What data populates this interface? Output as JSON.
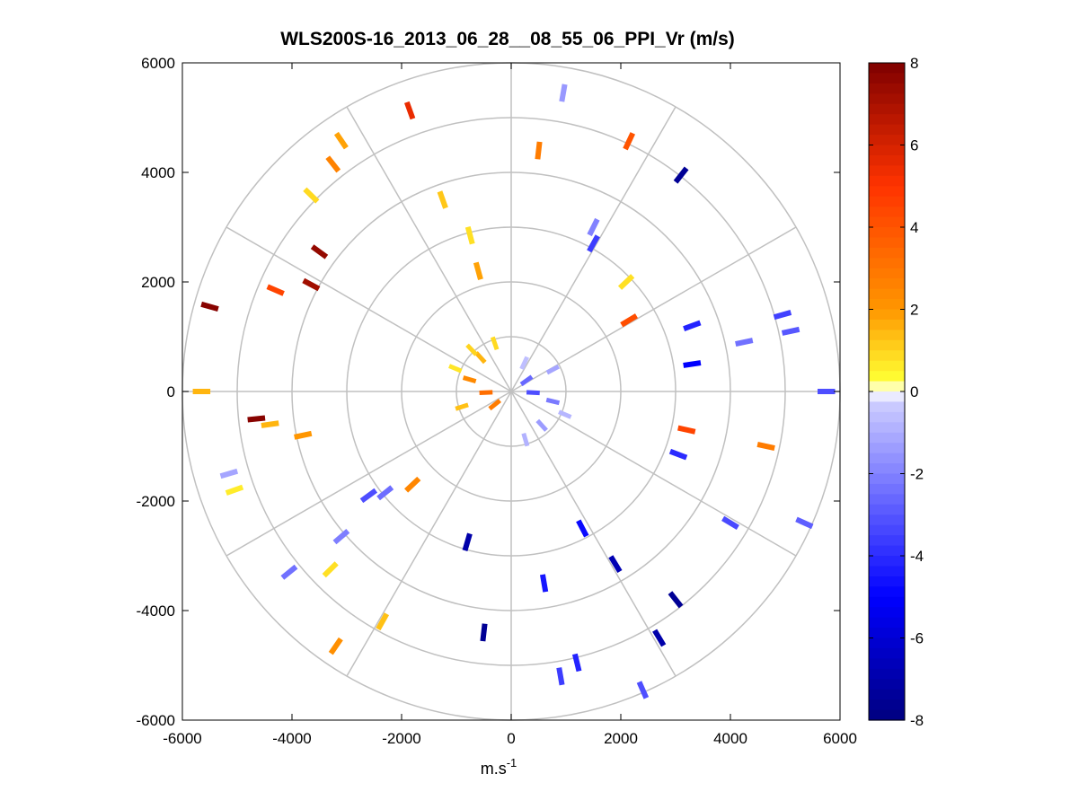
{
  "chart_data": {
    "type": "heatmap",
    "subtype": "polar-ppi",
    "title": "WLS200S-16_2013_06_28__08_55_06_PPI_Vr (m/s)",
    "xlabel": "m.s",
    "xlabel_superscript": "-1",
    "ylabel": "",
    "xlim": [
      -6000,
      6000
    ],
    "ylim": [
      -6000,
      6000
    ],
    "xticks": [
      -6000,
      -4000,
      -2000,
      0,
      2000,
      4000,
      6000
    ],
    "yticks": [
      -6000,
      -4000,
      -2000,
      0,
      2000,
      4000,
      6000
    ],
    "xtick_labels": [
      "-6000",
      "-4000",
      "-2000",
      "0",
      "2000",
      "4000",
      "6000"
    ],
    "ytick_labels": [
      "-6000",
      "-4000",
      "-2000",
      "0",
      "2000",
      "4000",
      "6000"
    ],
    "range_rings": [
      1000,
      2000,
      3000,
      4000,
      5000,
      6000
    ],
    "spoke_angles_deg": [
      0,
      30,
      60,
      90,
      120,
      150,
      180,
      210,
      240,
      270,
      300,
      330
    ],
    "colorbar": {
      "min": -8,
      "max": 8,
      "tick_values": [
        8,
        6,
        4,
        2,
        0,
        -2,
        -4,
        -6,
        -8
      ],
      "tick_labels": [
        "8",
        "6",
        "4",
        "2",
        "0",
        "-2",
        "-4",
        "-6",
        "-8"
      ],
      "colors": {
        "max": "#7f0000",
        "pos_mid": "#ff3300",
        "pos_low": "#ffff33",
        "zero": "#ffffff",
        "neg_low": "#ccccff",
        "neg_mid": "#0000ff",
        "min": "#000080"
      }
    },
    "points": [
      {
        "x": -460,
        "y": -20,
        "v": 3.2
      },
      {
        "x": -760,
        "y": 220,
        "v": 2.4
      },
      {
        "x": -560,
        "y": 620,
        "v": 1.5
      },
      {
        "x": -300,
        "y": 880,
        "v": 0.9
      },
      {
        "x": -900,
        "y": -280,
        "v": 1.3
      },
      {
        "x": -720,
        "y": 760,
        "v": 1.0
      },
      {
        "x": -300,
        "y": -240,
        "v": 2.8
      },
      {
        "x": -1020,
        "y": 420,
        "v": 0.7
      },
      {
        "x": 400,
        "y": -20,
        "v": -3.2
      },
      {
        "x": 760,
        "y": -180,
        "v": -2.2
      },
      {
        "x": 560,
        "y": -620,
        "v": -1.4
      },
      {
        "x": 260,
        "y": -880,
        "v": -0.9
      },
      {
        "x": 760,
        "y": 400,
        "v": -1.2
      },
      {
        "x": 240,
        "y": 520,
        "v": -0.6
      },
      {
        "x": 980,
        "y": -420,
        "v": -0.8
      },
      {
        "x": 280,
        "y": 200,
        "v": -2.6
      },
      {
        "x": -1850,
        "y": 5130,
        "v": 5.5
      },
      {
        "x": -3100,
        "y": 4580,
        "v": 1.8
      },
      {
        "x": -3250,
        "y": 4150,
        "v": 2.6
      },
      {
        "x": -3650,
        "y": 3580,
        "v": 0.9
      },
      {
        "x": -3500,
        "y": 2550,
        "v": 7.5
      },
      {
        "x": -3650,
        "y": 1950,
        "v": 7.2
      },
      {
        "x": -5500,
        "y": 1550,
        "v": 7.8
      },
      {
        "x": -4300,
        "y": 1850,
        "v": 4.5
      },
      {
        "x": -5650,
        "y": 0,
        "v": 1.5
      },
      {
        "x": -4650,
        "y": -500,
        "v": 7.8
      },
      {
        "x": -4400,
        "y": -600,
        "v": 1.5
      },
      {
        "x": -3800,
        "y": -800,
        "v": 2.0
      },
      {
        "x": -2600,
        "y": -1900,
        "v": -3.2
      },
      {
        "x": -3100,
        "y": -2650,
        "v": -2.1
      },
      {
        "x": -4050,
        "y": -3300,
        "v": -2.4
      },
      {
        "x": -3300,
        "y": -3250,
        "v": 0.8
      },
      {
        "x": -3200,
        "y": -4650,
        "v": 2.2
      },
      {
        "x": -5150,
        "y": -1500,
        "v": -1.2
      },
      {
        "x": -5050,
        "y": -1800,
        "v": 0.6
      },
      {
        "x": 4950,
        "y": 1400,
        "v": -3.5
      },
      {
        "x": 5100,
        "y": 1100,
        "v": -3.0
      },
      {
        "x": 5750,
        "y": 0,
        "v": -3.2
      },
      {
        "x": 4650,
        "y": -1000,
        "v": 2.8
      },
      {
        "x": 4000,
        "y": -2400,
        "v": -3.3
      },
      {
        "x": 5350,
        "y": -2400,
        "v": -2.8
      },
      {
        "x": 2150,
        "y": 4570,
        "v": 4.0
      },
      {
        "x": 3100,
        "y": 3950,
        "v": -7.5
      },
      {
        "x": 2400,
        "y": -5450,
        "v": -3.2
      },
      {
        "x": 3000,
        "y": -3800,
        "v": -7.5
      },
      {
        "x": 2700,
        "y": -4500,
        "v": -7.0
      },
      {
        "x": 1200,
        "y": -4950,
        "v": -4.2
      },
      {
        "x": 900,
        "y": -5200,
        "v": -3.6
      },
      {
        "x": -500,
        "y": -4400,
        "v": -7.5
      },
      {
        "x": -2350,
        "y": -4200,
        "v": 1.3
      },
      {
        "x": 950,
        "y": 5450,
        "v": -1.5
      },
      {
        "x": 500,
        "y": 4400,
        "v": 2.8
      },
      {
        "x": -750,
        "y": 2850,
        "v": 0.8
      },
      {
        "x": -1250,
        "y": 3500,
        "v": 1.2
      },
      {
        "x": -600,
        "y": 2200,
        "v": 1.8
      },
      {
        "x": 1500,
        "y": 3000,
        "v": -2.0
      },
      {
        "x": 2100,
        "y": 2000,
        "v": 0.8
      },
      {
        "x": 2150,
        "y": 1300,
        "v": 4.2
      },
      {
        "x": 3300,
        "y": 1200,
        "v": -4.2
      },
      {
        "x": 3300,
        "y": 500,
        "v": -5.0
      },
      {
        "x": 3200,
        "y": -700,
        "v": 4.5
      },
      {
        "x": 3050,
        "y": -1150,
        "v": -4.0
      },
      {
        "x": 1300,
        "y": -2500,
        "v": -4.8
      },
      {
        "x": 1900,
        "y": -3150,
        "v": -6.8
      },
      {
        "x": 600,
        "y": -3500,
        "v": -4.5
      },
      {
        "x": -800,
        "y": -2750,
        "v": -7.0
      },
      {
        "x": -1800,
        "y": -1700,
        "v": 2.5
      },
      {
        "x": -2300,
        "y": -1850,
        "v": -2.5
      },
      {
        "x": 4250,
        "y": 900,
        "v": -2.4
      },
      {
        "x": 1500,
        "y": 2700,
        "v": -3.6
      }
    ]
  }
}
